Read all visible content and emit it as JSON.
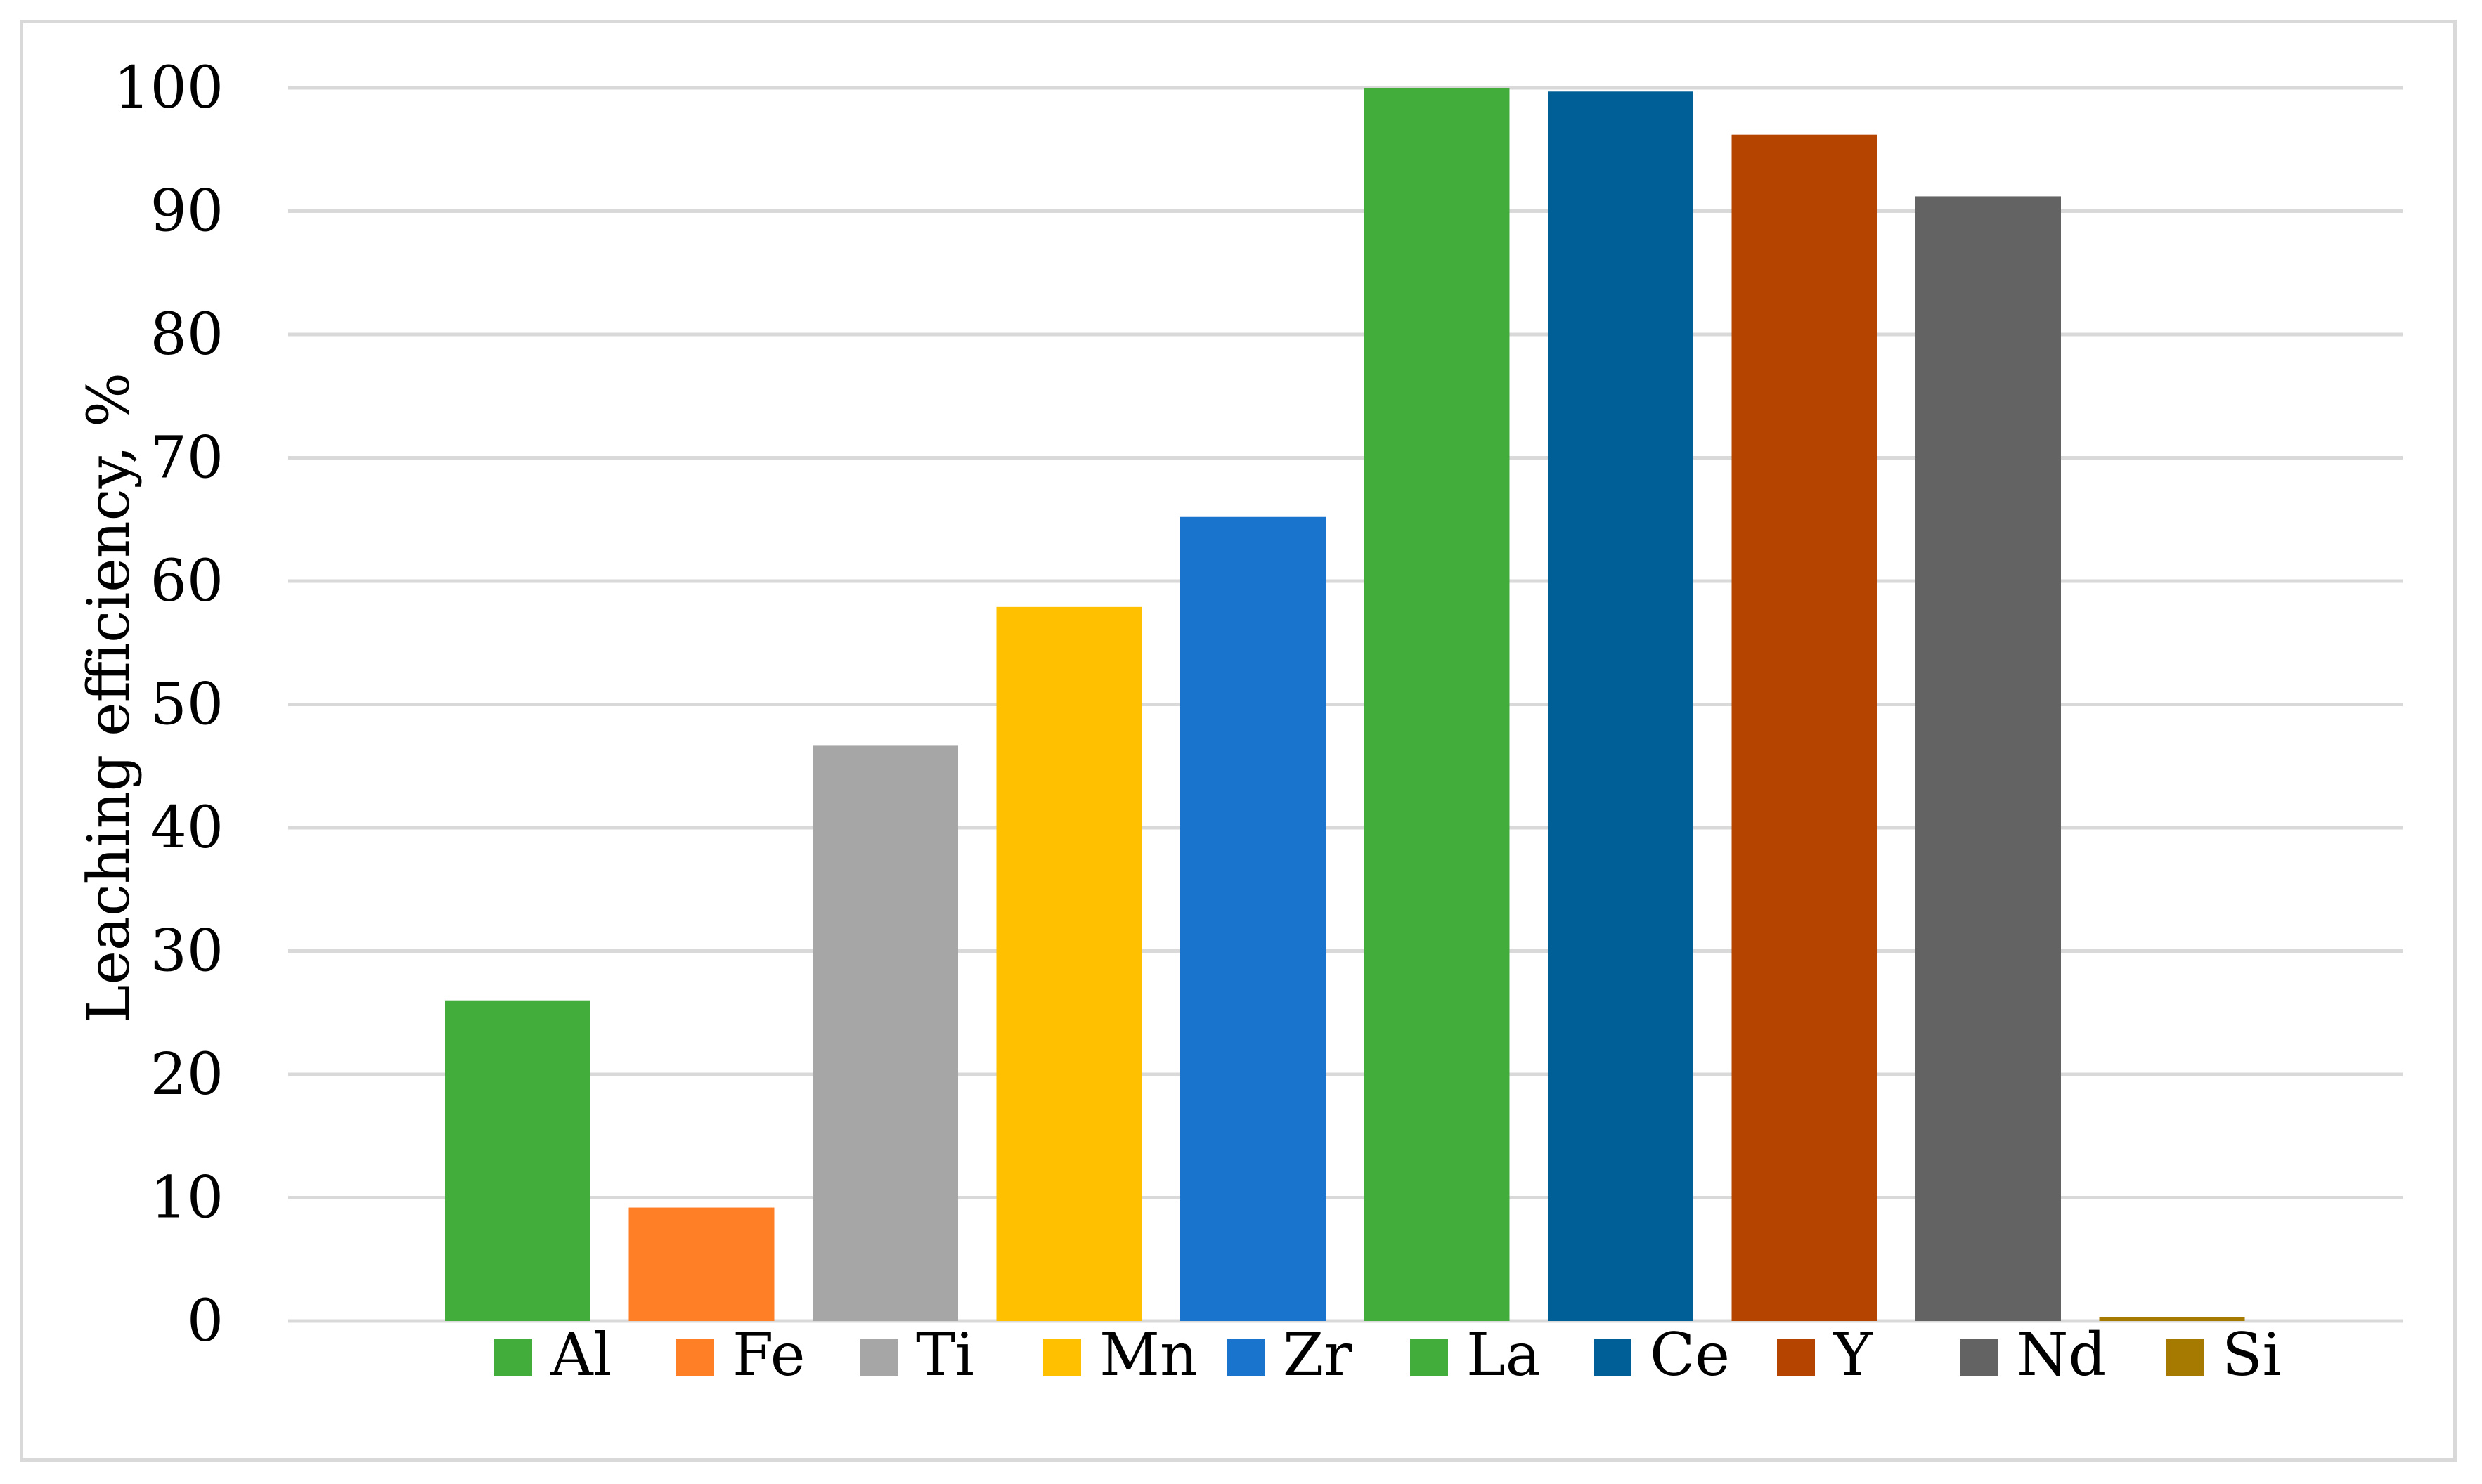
{
  "chart_data": {
    "type": "bar",
    "title": "",
    "xlabel": "",
    "ylabel": "Leaching efficiency, %",
    "ylim": [
      0,
      100
    ],
    "yticks": [
      0,
      10,
      20,
      30,
      40,
      50,
      60,
      70,
      80,
      90,
      100
    ],
    "grid": true,
    "legend_position": "bottom",
    "categories": [
      "Al",
      "Fe",
      "Ti",
      "Mn",
      "Zr",
      "La",
      "Ce",
      "Y",
      "Nd",
      "Si"
    ],
    "values": [
      26,
      9.2,
      46.7,
      57.9,
      65.2,
      100,
      99.7,
      96.2,
      91.2,
      0.3
    ],
    "colors": [
      "#43ad3c",
      "#ff7f27",
      "#a6a6a6",
      "#ffc000",
      "#1874cd",
      "#43ad3c",
      "#005f96",
      "#b54400",
      "#636363",
      "#a67a00"
    ]
  }
}
